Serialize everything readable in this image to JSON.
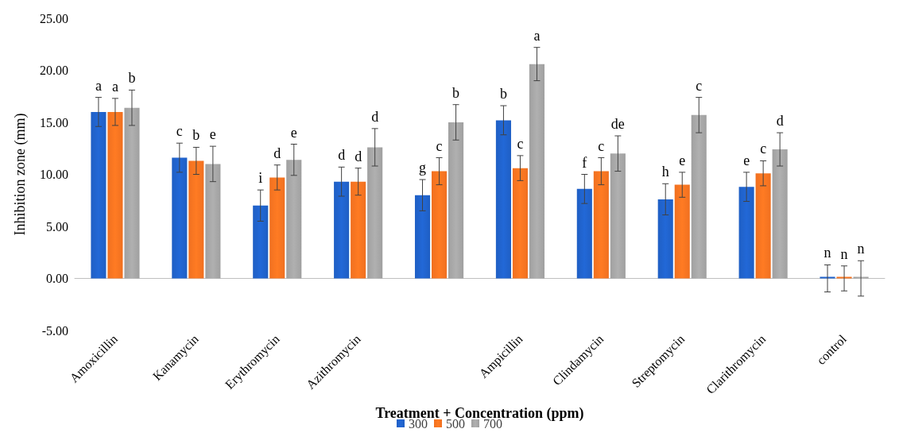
{
  "chart_data": {
    "type": "bar",
    "xlabel": "Treatment + Concentration (ppm)",
    "ylabel": "Inhibition zone (mm)",
    "categories": [
      "Amoxicillin",
      "Kanamycin",
      "Erythromycin",
      "Azithromycin",
      null,
      "Ampicillin",
      "Clindamycin",
      "Streptomycin",
      "Clarithromycin",
      "control"
    ],
    "series": [
      {
        "name": "300",
        "color": "#1f5fc4",
        "values": [
          16.0,
          11.6,
          7.0,
          9.3,
          8.0,
          15.2,
          8.6,
          7.6,
          8.8,
          0
        ],
        "errors": [
          1.4,
          1.4,
          1.5,
          1.4,
          1.5,
          1.4,
          1.4,
          1.5,
          1.4,
          1.3
        ],
        "value_labels": [
          "a",
          "c",
          "i",
          "d",
          "g",
          "b",
          "f",
          "h",
          "e",
          "n"
        ]
      },
      {
        "name": "500",
        "color": "#f07020",
        "values": [
          16.0,
          11.3,
          9.7,
          9.3,
          10.3,
          10.6,
          10.3,
          9.0,
          10.1,
          0
        ],
        "errors": [
          1.3,
          1.3,
          1.2,
          1.3,
          1.3,
          1.2,
          1.3,
          1.2,
          1.2,
          1.2
        ],
        "value_labels": [
          "a",
          "b",
          "d",
          "d",
          "c",
          "c",
          "c",
          "e",
          "c",
          "n"
        ]
      },
      {
        "name": "700",
        "color": "#a0a0a0",
        "values": [
          16.4,
          11.0,
          11.4,
          12.6,
          15.0,
          20.6,
          12.0,
          15.7,
          12.4,
          0
        ],
        "errors": [
          1.7,
          1.7,
          1.5,
          1.8,
          1.7,
          1.6,
          1.7,
          1.7,
          1.6,
          1.7
        ],
        "value_labels": [
          "b",
          "e",
          "e",
          "d",
          "b",
          "a",
          "de",
          "c",
          "d",
          "n"
        ]
      }
    ],
    "ylim": [
      -5,
      25
    ],
    "yticks": [
      {
        "value": -5,
        "label": "-5.00"
      },
      {
        "value": 0,
        "label": "0.00"
      },
      {
        "value": 5,
        "label": "5.00"
      },
      {
        "value": 10,
        "label": "10.00"
      },
      {
        "value": 15,
        "label": "15.00"
      },
      {
        "value": 20,
        "label": "20.00"
      },
      {
        "value": 25,
        "label": "25.00"
      }
    ],
    "legend": "bottom"
  }
}
